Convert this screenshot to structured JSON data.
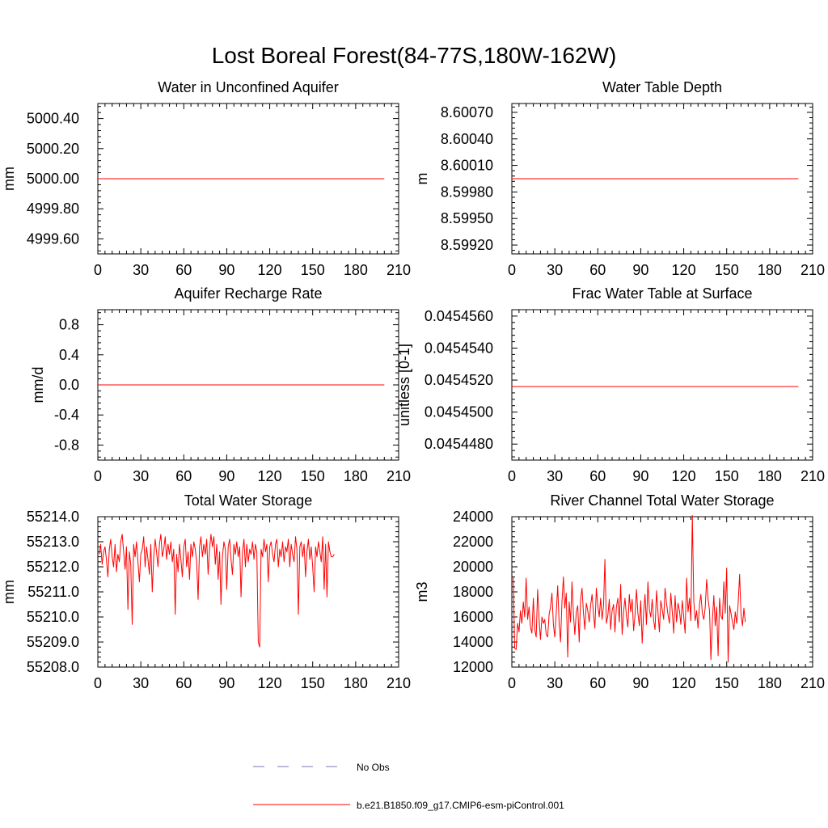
{
  "title": "Lost Boreal Forest(84-77S,180W-162W)",
  "colors": {
    "series": "#ff0000",
    "obs": "#7a7ab8",
    "axis": "#000000"
  },
  "legend": {
    "items": [
      {
        "label": "No Obs",
        "style": "dashed",
        "color": "#7a7ab8"
      },
      {
        "label": "b.e21.B1850.f09_g17.CMIP6-esm-piControl.001",
        "style": "solid",
        "color": "#ff0000"
      }
    ]
  },
  "chart_data": [
    {
      "type": "line",
      "title": "Water in Unconfined Aquifer",
      "xlabel": "",
      "ylabel": "mm",
      "xlim": [
        0,
        210
      ],
      "ylim": [
        4999.5,
        5000.5
      ],
      "xticks": [
        "0",
        "30",
        "60",
        "90",
        "120",
        "150",
        "180",
        "210"
      ],
      "yticks": [
        {
          "v": 4999.6,
          "label": "4999.60"
        },
        {
          "v": 4999.8,
          "label": "4999.80"
        },
        {
          "v": 5000.0,
          "label": "5000.00"
        },
        {
          "v": 5000.2,
          "label": "5000.20"
        },
        {
          "v": 5000.4,
          "label": "5000.40"
        }
      ],
      "series": [
        {
          "name": "b.e21.B1850.f09_g17.CMIP6-esm-piControl.001",
          "x_start": 0,
          "x_end": 200,
          "constant": 5000.0
        }
      ]
    },
    {
      "type": "line",
      "title": "Water Table Depth",
      "xlabel": "",
      "ylabel": "m",
      "xlim": [
        0,
        210
      ],
      "ylim": [
        8.5991,
        8.6008
      ],
      "xticks": [
        "0",
        "30",
        "60",
        "90",
        "120",
        "150",
        "180",
        "210"
      ],
      "yticks": [
        {
          "v": 8.5992,
          "label": "8.59920"
        },
        {
          "v": 8.5995,
          "label": "8.59950"
        },
        {
          "v": 8.5998,
          "label": "8.59980"
        },
        {
          "v": 8.6001,
          "label": "8.60010"
        },
        {
          "v": 8.6004,
          "label": "8.60040"
        },
        {
          "v": 8.6007,
          "label": "8.60070"
        }
      ],
      "series": [
        {
          "name": "b.e21.B1850.f09_g17.CMIP6-esm-piControl.001",
          "x_start": 0,
          "x_end": 200,
          "constant": 8.59995
        }
      ]
    },
    {
      "type": "line",
      "title": "Aquifer Recharge Rate",
      "xlabel": "",
      "ylabel": "mm/d",
      "xlim": [
        0,
        210
      ],
      "ylim": [
        -1.0,
        1.0
      ],
      "xticks": [
        "0",
        "30",
        "60",
        "90",
        "120",
        "150",
        "180",
        "210"
      ],
      "yticks": [
        {
          "v": -0.8,
          "label": "-0.8"
        },
        {
          "v": -0.4,
          "label": "-0.4"
        },
        {
          "v": 0.0,
          "label": "0.0"
        },
        {
          "v": 0.4,
          "label": "0.4"
        },
        {
          "v": 0.8,
          "label": "0.8"
        }
      ],
      "series": [
        {
          "name": "b.e21.B1850.f09_g17.CMIP6-esm-piControl.001",
          "x_start": 0,
          "x_end": 200,
          "constant": 0.0
        }
      ]
    },
    {
      "type": "line",
      "title": "Frac Water Table at Surface",
      "xlabel": "",
      "ylabel": "unitless [0-1]",
      "xlim": [
        0,
        210
      ],
      "ylim": [
        0.045447,
        0.0454564
      ],
      "xticks": [
        "0",
        "30",
        "60",
        "90",
        "120",
        "150",
        "180",
        "210"
      ],
      "yticks": [
        {
          "v": 0.045448,
          "label": "0.0454480"
        },
        {
          "v": 0.04545,
          "label": "0.0454500"
        },
        {
          "v": 0.045452,
          "label": "0.0454520"
        },
        {
          "v": 0.045454,
          "label": "0.0454540"
        },
        {
          "v": 0.045456,
          "label": "0.0454560"
        }
      ],
      "series": [
        {
          "name": "b.e21.B1850.f09_g17.CMIP6-esm-piControl.001",
          "x_start": 0,
          "x_end": 200,
          "constant": 0.0454516
        }
      ]
    },
    {
      "type": "line",
      "title": "Total Water Storage",
      "xlabel": "",
      "ylabel": "mm",
      "xlim": [
        0,
        210
      ],
      "ylim": [
        55208.0,
        55214.0
      ],
      "xticks": [
        "0",
        "30",
        "60",
        "90",
        "120",
        "150",
        "180",
        "210"
      ],
      "yticks": [
        {
          "v": 55208,
          "label": "55208.0"
        },
        {
          "v": 55209,
          "label": "55209.0"
        },
        {
          "v": 55210,
          "label": "55210.0"
        },
        {
          "v": 55211,
          "label": "55211.0"
        },
        {
          "v": 55212,
          "label": "55212.0"
        },
        {
          "v": 55213,
          "label": "55213.0"
        },
        {
          "v": 55214,
          "label": "55214.0"
        }
      ],
      "series": [
        {
          "name": "b.e21.B1850.f09_g17.CMIP6-esm-piControl.001",
          "x_start": 1,
          "values": [
            55212.5,
            55212.9,
            55212.1,
            55212.6,
            55212.8,
            55212.3,
            55211.6,
            55212.7,
            55213.1,
            55212.4,
            55212.0,
            55212.9,
            55211.8,
            55212.5,
            55212.2,
            55213.0,
            55213.3,
            55212.6,
            55211.9,
            55212.8,
            55210.3,
            55212.6,
            55212.1,
            55209.7,
            55212.9,
            55212.4,
            55213.0,
            55212.2,
            55211.4,
            55212.5,
            55212.7,
            55213.2,
            55212.0,
            55212.8,
            55212.3,
            55211.7,
            55212.9,
            55211.0,
            55212.4,
            55213.1,
            55212.6,
            55212.0,
            55212.9,
            55213.3,
            55212.4,
            55212.7,
            55213.2,
            55212.3,
            55212.9,
            55212.5,
            55213.0,
            55212.2,
            55212.7,
            55210.1,
            55212.5,
            55211.8,
            55212.9,
            55212.3,
            55211.6,
            55212.8,
            55213.1,
            55212.0,
            55212.6,
            55211.5,
            55212.9,
            55212.4,
            55213.0,
            55212.7,
            55212.2,
            55210.7,
            55212.8,
            55213.2,
            55212.4,
            55212.9,
            55212.5,
            55213.1,
            55211.7,
            55212.7,
            55213.3,
            55212.8,
            55213.2,
            55212.1,
            55212.9,
            55211.5,
            55212.6,
            55210.5,
            55212.4,
            55213.0,
            55212.7,
            55211.1,
            55212.8,
            55213.1,
            55212.3,
            55211.7,
            55212.9,
            55212.5,
            55213.0,
            55212.4,
            55212.8,
            55210.8,
            55212.6,
            55213.1,
            55212.0,
            55212.9,
            55212.2,
            55212.7,
            55212.5,
            55213.0,
            55212.3,
            55212.9,
            55212.6,
            55209.0,
            55208.8,
            55212.7,
            55212.4,
            55213.1,
            55212.6,
            55212.9,
            55211.4,
            55212.8,
            55213.0,
            55212.5,
            55212.2,
            55212.9,
            55213.1,
            55212.0,
            55212.7,
            55212.4,
            55213.0,
            55212.2,
            55212.8,
            55212.6,
            55213.1,
            55212.0,
            55212.9,
            55212.5,
            55212.2,
            55213.2,
            55212.7,
            55210.1,
            55212.8,
            55213.0,
            55212.4,
            55212.9,
            55211.6,
            55212.6,
            55213.1,
            55212.3,
            55212.8,
            55212.0,
            55211.0,
            55212.8,
            55212.4,
            55213.0,
            55212.6,
            55212.2,
            55213.2,
            55211.1,
            55212.9,
            55210.8,
            55213.0,
            55212.6,
            55212.4,
            55212.4,
            55212.5
          ]
        }
      ]
    },
    {
      "type": "line",
      "title": "River Channel Total Water Storage",
      "xlabel": "",
      "ylabel": "m3",
      "xlim": [
        0,
        210
      ],
      "ylim": [
        12000,
        24000
      ],
      "xticks": [
        "0",
        "30",
        "60",
        "90",
        "120",
        "150",
        "180",
        "210"
      ],
      "yticks": [
        {
          "v": 12000,
          "label": "12000"
        },
        {
          "v": 14000,
          "label": "14000"
        },
        {
          "v": 16000,
          "label": "16000"
        },
        {
          "v": 18000,
          "label": "18000"
        },
        {
          "v": 20000,
          "label": "20000"
        },
        {
          "v": 22000,
          "label": "22000"
        },
        {
          "v": 24000,
          "label": "24000"
        }
      ],
      "series": [
        {
          "name": "b.e21.B1850.f09_g17.CMIP6-esm-piControl.001",
          "x_start": 1,
          "values": [
            19200,
            13500,
            13400,
            15500,
            14800,
            16500,
            15500,
            17200,
            16000,
            19100,
            15800,
            16800,
            15200,
            14700,
            17500,
            15000,
            14400,
            18200,
            15800,
            14200,
            16000,
            15500,
            15800,
            14600,
            14400,
            16200,
            16800,
            17900,
            15400,
            14400,
            16300,
            18500,
            15500,
            14000,
            17200,
            19200,
            16700,
            17900,
            12800,
            17200,
            15600,
            18800,
            16200,
            14600,
            16400,
            16900,
            14000,
            17400,
            18300,
            16300,
            15000,
            17100,
            16500,
            15600,
            16900,
            17800,
            16200,
            15100,
            18300,
            16900,
            16000,
            17500,
            15800,
            16900,
            20600,
            15500,
            16100,
            17400,
            15000,
            16500,
            17000,
            14800,
            16800,
            17500,
            15600,
            18600,
            14600,
            16400,
            17500,
            16100,
            15200,
            17800,
            16400,
            17400,
            14900,
            16100,
            18200,
            16300,
            15300,
            17300,
            13900,
            16400,
            17800,
            15400,
            18800,
            16600,
            16000,
            17400,
            15700,
            15000,
            18100,
            16400,
            14800,
            17300,
            16600,
            15800,
            18300,
            17100,
            16200,
            15500,
            17900,
            16400,
            14700,
            17700,
            15600,
            17100,
            16500,
            15400,
            17300,
            16000,
            14700,
            19100,
            16400,
            17500,
            15700,
            24100,
            17300,
            15700,
            16500,
            15100,
            17000,
            17800,
            16300,
            15800,
            16700,
            19000,
            17400,
            16500,
            12600,
            15700,
            17700,
            15300,
            16800,
            12900,
            17500,
            16100,
            15800,
            18800,
            16300,
            19900,
            12400,
            16900,
            16300,
            15600,
            15000,
            16400,
            15500,
            17100,
            19400,
            16200,
            15300,
            16700,
            15600
          ]
        }
      ]
    }
  ]
}
